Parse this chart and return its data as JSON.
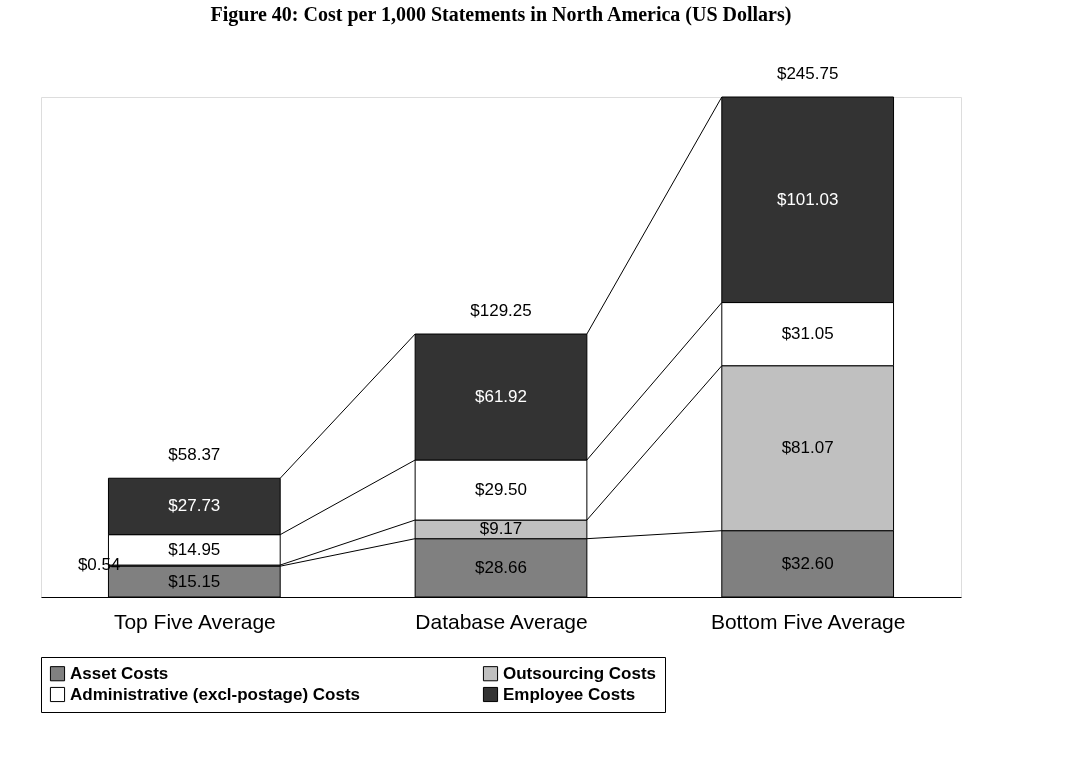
{
  "chart_data": {
    "type": "bar",
    "title": "Figure 40: Cost per 1,000 Statements in North America (US Dollars)",
    "stacked": true,
    "legend": "bottom",
    "categories": [
      "Top Five Average",
      "Database Average",
      "Bottom Five Average"
    ],
    "series": [
      {
        "name": "Asset Costs",
        "color": "#808080",
        "values": [
          15.15,
          28.66,
          32.6
        ],
        "value_labels": [
          "$15.15",
          "$28.66",
          "$32.60"
        ]
      },
      {
        "name": "Outsourcing Costs",
        "color": "#c0c0c0",
        "values": [
          0.54,
          9.17,
          81.07
        ],
        "value_labels": [
          "$0.54",
          "$9.17",
          "$81.07"
        ]
      },
      {
        "name": "Administrative (excl-postage) Costs",
        "color": "#ffffff",
        "values": [
          14.95,
          29.5,
          31.05
        ],
        "value_labels": [
          "$14.95",
          "$29.50",
          "$31.05"
        ]
      },
      {
        "name": "Employee Costs",
        "color": "#333333",
        "values": [
          27.73,
          61.92,
          101.03
        ],
        "value_labels": [
          "$27.73",
          "$61.92",
          "$101.03"
        ]
      }
    ],
    "totals": [
      "$58.37",
      "$129.25",
      "$245.75"
    ]
  }
}
